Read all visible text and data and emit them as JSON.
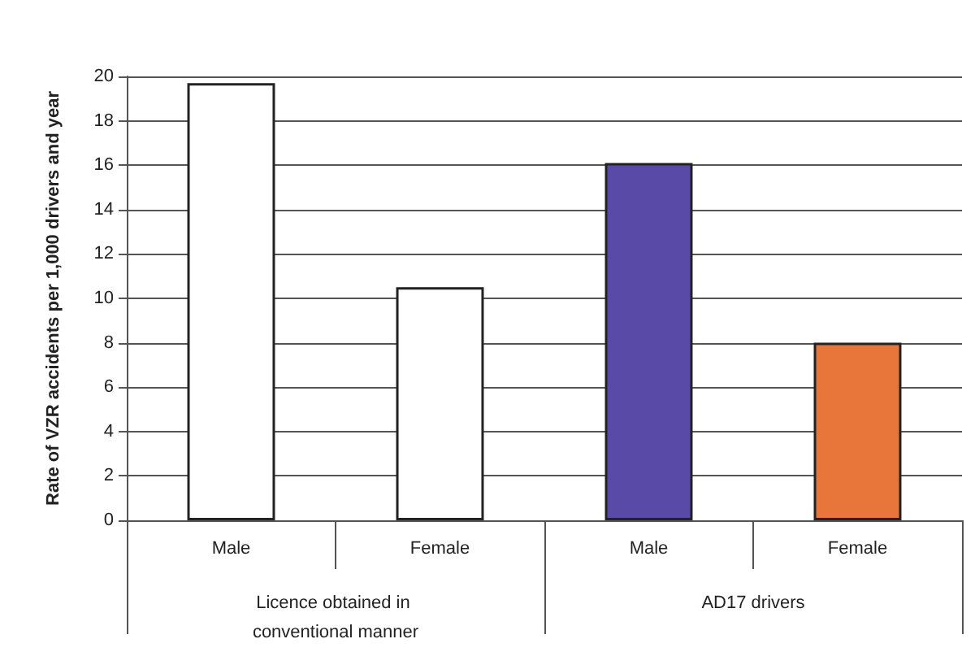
{
  "chart_data": {
    "type": "bar",
    "ylabel": "Rate of VZR accidents per 1,000 drivers and year",
    "categories": [
      "Male",
      "Female",
      "Male",
      "Female"
    ],
    "values": [
      19.7,
      10.5,
      16.1,
      8.0
    ],
    "colors": [
      "#ffffff",
      "#ffffff",
      "#5a4aa8",
      "#e8753a"
    ],
    "annotations": [
      "Licence obtained in conventional manner",
      "AD17 drivers"
    ],
    "ylim": [
      0,
      20
    ],
    "yticks": [
      0,
      2,
      4,
      6,
      8,
      10,
      12,
      14,
      16,
      18,
      20
    ],
    "grid": "y"
  }
}
